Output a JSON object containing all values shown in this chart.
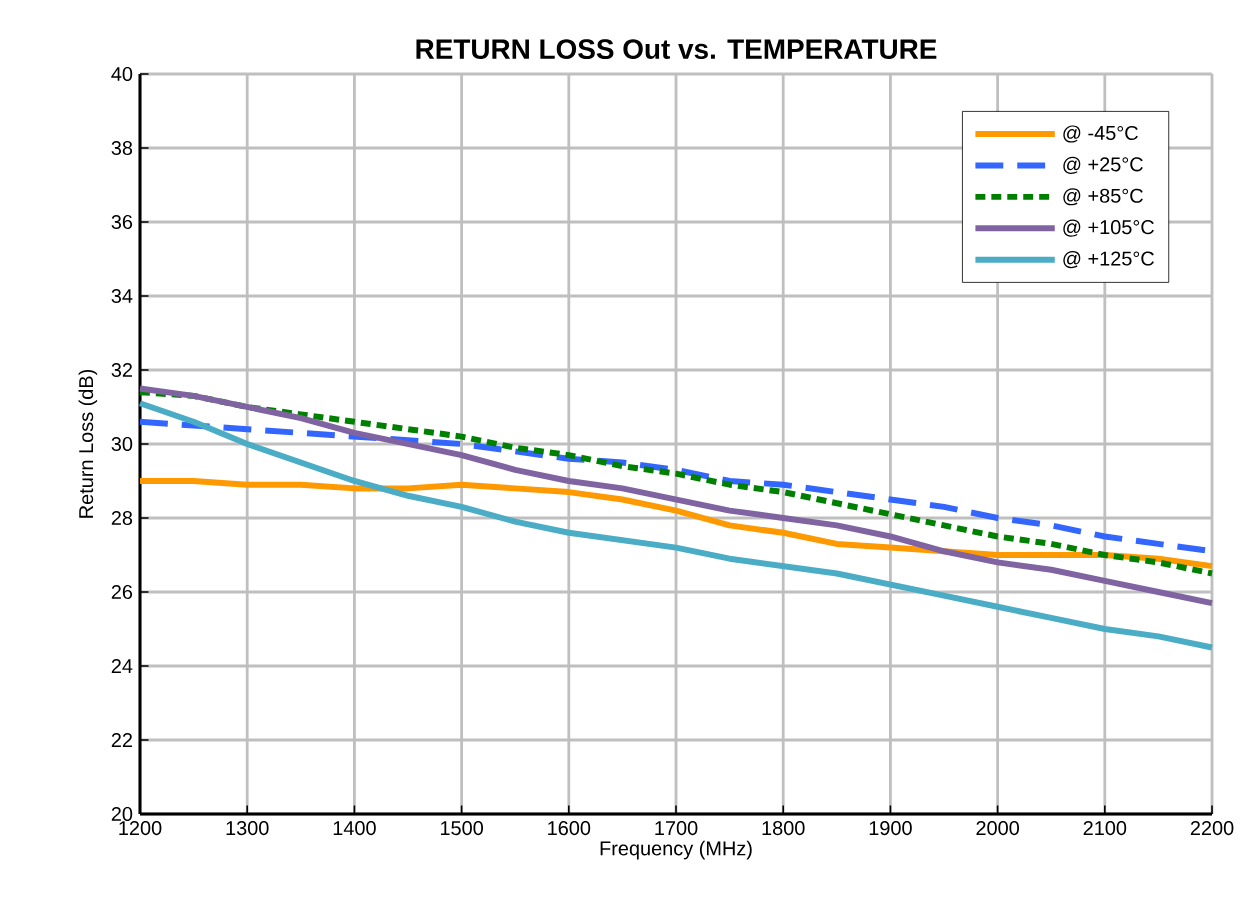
{
  "chart_data": {
    "type": "line",
    "title": "RETURN LOSS Out vs. TEMPERATURE",
    "xlabel": "Frequency (MHz)",
    "ylabel": "Return Loss (dB)",
    "x": [
      1200,
      1250,
      1300,
      1350,
      1400,
      1450,
      1500,
      1550,
      1600,
      1650,
      1700,
      1750,
      1800,
      1850,
      1900,
      1950,
      2000,
      2050,
      2100,
      2150,
      2200
    ],
    "xlim": [
      1200,
      2200
    ],
    "xticks": [
      1200,
      1300,
      1400,
      1500,
      1600,
      1700,
      1800,
      1900,
      2000,
      2100,
      2200
    ],
    "ylim": [
      20,
      40
    ],
    "yticks": [
      20,
      22,
      24,
      26,
      28,
      30,
      32,
      34,
      36,
      38,
      40
    ],
    "grid": true,
    "legend": "top right",
    "series": [
      {
        "name": "@ -45°C",
        "color": "#ff9900",
        "line_style": "solid",
        "values": [
          29.0,
          29.0,
          28.9,
          28.9,
          28.8,
          28.8,
          28.9,
          28.8,
          28.7,
          28.5,
          28.2,
          27.8,
          27.6,
          27.3,
          27.2,
          27.1,
          27.0,
          27.0,
          27.0,
          26.9,
          26.7
        ]
      },
      {
        "name": "@ +25°C",
        "color": "#3366ff",
        "line_style": "dashed",
        "values": [
          30.6,
          30.5,
          30.4,
          30.3,
          30.2,
          30.1,
          30.0,
          29.8,
          29.6,
          29.5,
          29.3,
          29.0,
          28.9,
          28.7,
          28.5,
          28.3,
          28.0,
          27.8,
          27.5,
          27.3,
          27.1
        ]
      },
      {
        "name": "@ +85°C",
        "color": "#008000",
        "line_style": "dotted",
        "values": [
          31.4,
          31.3,
          31.0,
          30.8,
          30.6,
          30.4,
          30.2,
          29.9,
          29.7,
          29.4,
          29.2,
          28.9,
          28.7,
          28.4,
          28.1,
          27.8,
          27.5,
          27.3,
          27.0,
          26.8,
          26.5
        ]
      },
      {
        "name": "@ +105°C",
        "color": "#8064a2",
        "line_style": "solid",
        "values": [
          31.5,
          31.3,
          31.0,
          30.7,
          30.3,
          30.0,
          29.7,
          29.3,
          29.0,
          28.8,
          28.5,
          28.2,
          28.0,
          27.8,
          27.5,
          27.1,
          26.8,
          26.6,
          26.3,
          26.0,
          25.7
        ]
      },
      {
        "name": "@ +125°C",
        "color": "#4bacc6",
        "line_style": "solid",
        "values": [
          31.1,
          30.6,
          30.0,
          29.5,
          29.0,
          28.6,
          28.3,
          27.9,
          27.6,
          27.4,
          27.2,
          26.9,
          26.7,
          26.5,
          26.2,
          25.9,
          25.6,
          25.3,
          25.0,
          24.8,
          24.5
        ]
      }
    ]
  }
}
